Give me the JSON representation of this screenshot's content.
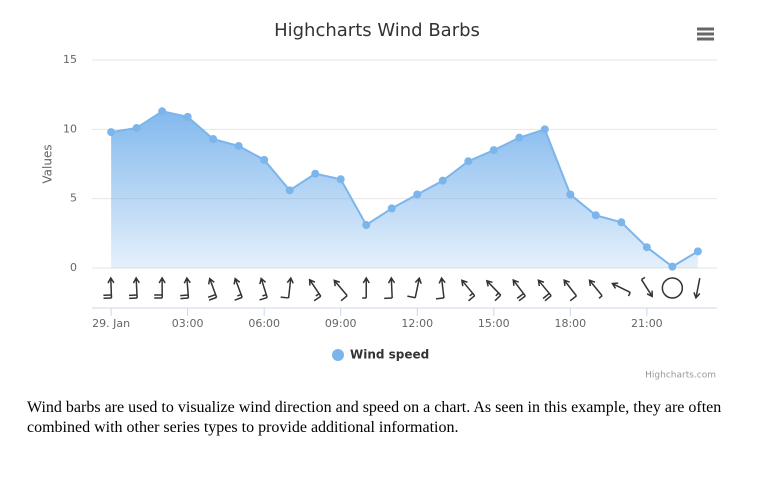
{
  "chart_data": {
    "type": "windbarb",
    "title": "Highcharts Wind Barbs",
    "y_label": "Values",
    "x": [
      0,
      1,
      2,
      3,
      4,
      5,
      6,
      7,
      8,
      9,
      10,
      11,
      12,
      13,
      14,
      15,
      16,
      17,
      18,
      19,
      20,
      21,
      22,
      23
    ],
    "xlim": [
      -0.75,
      23.75
    ],
    "xticks": [
      {
        "value": 0,
        "label": "29. Jan"
      },
      {
        "value": 3,
        "label": "03:00"
      },
      {
        "value": 6,
        "label": "06:00"
      },
      {
        "value": 9,
        "label": "09:00"
      },
      {
        "value": 12,
        "label": "12:00"
      },
      {
        "value": 15,
        "label": "15:00"
      },
      {
        "value": 18,
        "label": "18:00"
      },
      {
        "value": 21,
        "label": "21:00"
      }
    ],
    "ylim": [
      0,
      15
    ],
    "yticks": [
      0,
      5,
      10,
      15
    ],
    "grid": true,
    "legend_position": "bottom",
    "series": [
      {
        "name": "Wind speed",
        "color": "#7cb5ec",
        "values": [
          9.8,
          10.1,
          11.3,
          10.9,
          9.3,
          8.8,
          7.8,
          5.6,
          6.8,
          6.4,
          3.1,
          4.3,
          5.3,
          6.3,
          7.7,
          8.5,
          9.4,
          10.0,
          5.3,
          3.8,
          3.3,
          1.5,
          0.1,
          1.2
        ],
        "direction": [
          177.9,
          177.2,
          179.7,
          175.5,
          159.9,
          159.6,
          162.6,
          186.2,
          146.0,
          139.9,
          180.2,
          177.6,
          191.8,
          173.1,
          140.2,
          136.1,
          142.9,
          140.4,
          142.1,
          141.0,
          116.5,
          327.5,
          1.1,
          11.1
        ]
      }
    ],
    "credits": "Highcharts.com"
  },
  "caption": "Wind barbs are used to visualize wind direction and speed on a chart. As seen in this example, they are often combined with other series types to provide additional information."
}
